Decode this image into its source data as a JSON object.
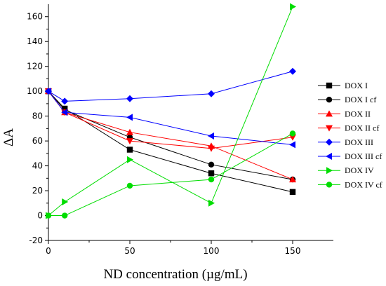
{
  "chart_data": {
    "type": "line",
    "title": "",
    "xlabel": "ND concentration (µg/mL)",
    "ylabel": "ΔA",
    "xlim": [
      0,
      175
    ],
    "ylim": [
      -20,
      170
    ],
    "xticks": [
      0,
      50,
      100,
      150
    ],
    "yticks": [
      -20,
      0,
      20,
      40,
      60,
      80,
      100,
      120,
      140,
      160
    ],
    "x": [
      0,
      10,
      50,
      100,
      150
    ],
    "grid": false,
    "legend_position": "right",
    "series": [
      {
        "name": "DOX I",
        "color": "#000000",
        "marker": "square",
        "values": [
          100,
          86,
          53,
          34,
          19
        ]
      },
      {
        "name": "DOX I cf",
        "color": "#000000",
        "marker": "circle",
        "values": [
          100,
          85,
          63,
          41,
          29
        ]
      },
      {
        "name": "DOX II",
        "color": "#ff0000",
        "marker": "triangle-up",
        "values": [
          100,
          83,
          67,
          56,
          29
        ]
      },
      {
        "name": "DOX II cf",
        "color": "#ff0000",
        "marker": "triangle-down",
        "values": [
          100,
          83,
          60,
          54,
          63
        ]
      },
      {
        "name": "DOX III",
        "color": "#0000ff",
        "marker": "diamond",
        "values": [
          100,
          92,
          94,
          98,
          116
        ]
      },
      {
        "name": "DOX III cf",
        "color": "#0000ff",
        "marker": "triangle-left",
        "values": [
          100,
          83,
          79,
          64,
          57
        ]
      },
      {
        "name": "DOX IV",
        "color": "#00dd00",
        "marker": "triangle-right",
        "values": [
          0,
          11,
          45,
          10,
          168
        ]
      },
      {
        "name": "DOX IV cf",
        "color": "#00dd00",
        "marker": "circle",
        "values": [
          0,
          0,
          24,
          29,
          66
        ]
      }
    ]
  }
}
